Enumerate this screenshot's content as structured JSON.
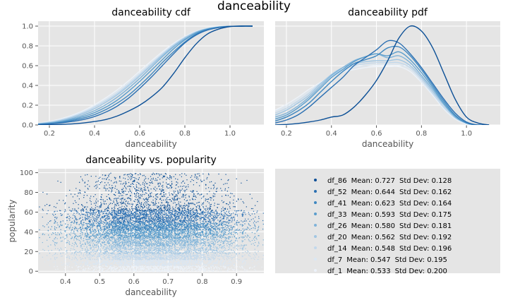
{
  "suptitle": "danceability",
  "colors": {
    "panel_bg": "#e5e5e5",
    "grid": "#ffffff",
    "series": [
      "#0b4f96",
      "#2a6fb2",
      "#3e87c0",
      "#5a9dcc",
      "#7fb3d9",
      "#a0c6e3",
      "#c1d8ec",
      "#dae7f3",
      "#ecf2f9"
    ]
  },
  "chart_data": [
    {
      "type": "line",
      "title": "danceability cdf",
      "xlabel": "danceability",
      "ylabel": "",
      "xlim": [
        0.15,
        1.15
      ],
      "ylim": [
        0,
        1.05
      ],
      "xticks": [
        "0.2",
        "0.4",
        "0.6",
        "0.8",
        "1.0"
      ],
      "yticks": [
        "0.0",
        "0.2",
        "0.4",
        "0.6",
        "0.8",
        "1.0"
      ],
      "grid": true,
      "x": [
        0.15,
        0.2,
        0.25,
        0.3,
        0.35,
        0.4,
        0.45,
        0.5,
        0.55,
        0.6,
        0.65,
        0.7,
        0.75,
        0.8,
        0.85,
        0.9,
        0.95,
        1.0,
        1.05,
        1.1
      ],
      "series": [
        {
          "name": "df_86",
          "values": [
            0.0,
            0.002,
            0.005,
            0.01,
            0.02,
            0.035,
            0.055,
            0.09,
            0.14,
            0.2,
            0.28,
            0.38,
            0.52,
            0.68,
            0.82,
            0.92,
            0.97,
            0.995,
            1.0,
            1.0
          ]
        },
        {
          "name": "df_52",
          "values": [
            0.005,
            0.01,
            0.02,
            0.035,
            0.055,
            0.085,
            0.13,
            0.19,
            0.27,
            0.37,
            0.48,
            0.6,
            0.72,
            0.83,
            0.91,
            0.96,
            0.985,
            0.998,
            1.0,
            1.0
          ]
        },
        {
          "name": "df_41",
          "values": [
            0.006,
            0.012,
            0.025,
            0.045,
            0.07,
            0.105,
            0.155,
            0.22,
            0.3,
            0.4,
            0.51,
            0.63,
            0.74,
            0.84,
            0.92,
            0.965,
            0.988,
            0.998,
            1.0,
            1.0
          ]
        },
        {
          "name": "df_33",
          "values": [
            0.008,
            0.017,
            0.032,
            0.055,
            0.085,
            0.125,
            0.18,
            0.25,
            0.34,
            0.44,
            0.55,
            0.66,
            0.77,
            0.86,
            0.93,
            0.97,
            0.99,
            0.998,
            1.0,
            1.0
          ]
        },
        {
          "name": "df_26",
          "values": [
            0.01,
            0.02,
            0.038,
            0.065,
            0.1,
            0.145,
            0.205,
            0.28,
            0.37,
            0.47,
            0.58,
            0.69,
            0.79,
            0.87,
            0.935,
            0.972,
            0.99,
            0.998,
            1.0,
            1.0
          ]
        },
        {
          "name": "df_20",
          "values": [
            0.012,
            0.025,
            0.045,
            0.075,
            0.115,
            0.165,
            0.23,
            0.305,
            0.395,
            0.495,
            0.6,
            0.705,
            0.8,
            0.88,
            0.94,
            0.975,
            0.992,
            0.998,
            1.0,
            1.0
          ]
        },
        {
          "name": "df_14",
          "values": [
            0.014,
            0.028,
            0.05,
            0.082,
            0.125,
            0.18,
            0.245,
            0.32,
            0.41,
            0.51,
            0.615,
            0.715,
            0.81,
            0.885,
            0.942,
            0.976,
            0.992,
            0.998,
            1.0,
            1.0
          ]
        },
        {
          "name": "df_7",
          "values": [
            0.016,
            0.032,
            0.056,
            0.09,
            0.135,
            0.19,
            0.258,
            0.335,
            0.425,
            0.525,
            0.625,
            0.725,
            0.815,
            0.89,
            0.945,
            0.978,
            0.993,
            0.998,
            1.0,
            1.0
          ]
        },
        {
          "name": "df_1",
          "values": [
            0.018,
            0.036,
            0.062,
            0.098,
            0.145,
            0.205,
            0.275,
            0.355,
            0.445,
            0.545,
            0.645,
            0.74,
            0.825,
            0.895,
            0.948,
            0.98,
            0.994,
            0.999,
            1.0,
            1.0
          ]
        }
      ]
    },
    {
      "type": "line",
      "title": "danceability pdf",
      "xlabel": "danceability",
      "ylabel": "",
      "xlim": [
        0.15,
        1.15
      ],
      "ylim": [
        0,
        1.05
      ],
      "xticks": [
        "0.2",
        "0.4",
        "0.6",
        "0.8",
        "1.0"
      ],
      "yticks": [],
      "grid": true,
      "x": [
        0.15,
        0.2,
        0.25,
        0.3,
        0.35,
        0.4,
        0.45,
        0.5,
        0.55,
        0.6,
        0.65,
        0.7,
        0.75,
        0.8,
        0.85,
        0.9,
        0.95,
        1.0,
        1.05,
        1.1
      ],
      "series": [
        {
          "name": "df_86",
          "values": [
            0.0,
            0.005,
            0.015,
            0.03,
            0.05,
            0.08,
            0.1,
            0.18,
            0.3,
            0.45,
            0.65,
            0.88,
            1.0,
            0.95,
            0.78,
            0.52,
            0.26,
            0.08,
            0.02,
            0.0
          ]
        },
        {
          "name": "df_52",
          "values": [
            0.02,
            0.05,
            0.1,
            0.18,
            0.28,
            0.38,
            0.48,
            0.6,
            0.68,
            0.76,
            0.85,
            0.83,
            0.72,
            0.58,
            0.42,
            0.26,
            0.12,
            0.03,
            0.0,
            0.0
          ]
        },
        {
          "name": "df_41",
          "values": [
            0.04,
            0.08,
            0.14,
            0.22,
            0.33,
            0.44,
            0.54,
            0.62,
            0.66,
            0.7,
            0.78,
            0.79,
            0.7,
            0.56,
            0.4,
            0.24,
            0.1,
            0.02,
            0.0,
            0.0
          ]
        },
        {
          "name": "df_33",
          "values": [
            0.06,
            0.1,
            0.17,
            0.26,
            0.37,
            0.48,
            0.56,
            0.64,
            0.69,
            0.72,
            0.7,
            0.74,
            0.66,
            0.53,
            0.38,
            0.22,
            0.09,
            0.02,
            0.0,
            0.0
          ]
        },
        {
          "name": "df_26",
          "values": [
            0.08,
            0.12,
            0.19,
            0.28,
            0.39,
            0.5,
            0.58,
            0.65,
            0.69,
            0.72,
            0.68,
            0.7,
            0.63,
            0.5,
            0.36,
            0.21,
            0.08,
            0.02,
            0.0,
            0.0
          ]
        },
        {
          "name": "df_20",
          "values": [
            0.1,
            0.15,
            0.22,
            0.3,
            0.41,
            0.51,
            0.58,
            0.62,
            0.64,
            0.65,
            0.65,
            0.66,
            0.6,
            0.48,
            0.34,
            0.2,
            0.08,
            0.02,
            0.0,
            0.0
          ]
        },
        {
          "name": "df_14",
          "values": [
            0.12,
            0.17,
            0.24,
            0.32,
            0.42,
            0.5,
            0.56,
            0.6,
            0.62,
            0.63,
            0.63,
            0.63,
            0.58,
            0.46,
            0.32,
            0.18,
            0.07,
            0.02,
            0.0,
            0.0
          ]
        },
        {
          "name": "df_7",
          "values": [
            0.14,
            0.19,
            0.26,
            0.34,
            0.42,
            0.49,
            0.54,
            0.58,
            0.6,
            0.61,
            0.61,
            0.61,
            0.56,
            0.44,
            0.31,
            0.17,
            0.07,
            0.01,
            0.0,
            0.0
          ]
        },
        {
          "name": "df_1",
          "values": [
            0.15,
            0.21,
            0.28,
            0.36,
            0.43,
            0.49,
            0.54,
            0.56,
            0.58,
            0.59,
            0.59,
            0.59,
            0.54,
            0.43,
            0.3,
            0.16,
            0.06,
            0.01,
            0.0,
            0.0
          ]
        }
      ]
    },
    {
      "type": "scatter",
      "title": "danceability vs. popularity",
      "xlabel": "danceability",
      "ylabel": "popularity",
      "xlim": [
        0.32,
        0.98
      ],
      "ylim": [
        -2,
        104
      ],
      "xticks": [
        "0.4",
        "0.5",
        "0.6",
        "0.7",
        "0.8",
        "0.9"
      ],
      "yticks": [
        "0",
        "20",
        "40",
        "60",
        "80",
        "100"
      ],
      "grid": true,
      "point_layers": [
        {
          "name": "df_1",
          "y_range": [
            0,
            6
          ],
          "density": 900
        },
        {
          "name": "df_7",
          "y_range": [
            6,
            12
          ],
          "density": 900
        },
        {
          "name": "df_14",
          "y_range": [
            12,
            18
          ],
          "density": 900
        },
        {
          "name": "df_20",
          "y_range": [
            18,
            26
          ],
          "density": 1000
        },
        {
          "name": "df_26",
          "y_range": [
            26,
            34
          ],
          "density": 1100
        },
        {
          "name": "df_33",
          "y_range": [
            34,
            42
          ],
          "density": 1300
        },
        {
          "name": "df_41",
          "y_range": [
            42,
            50
          ],
          "density": 1400
        },
        {
          "name": "df_52",
          "y_range": [
            50,
            62
          ],
          "density": 1600
        },
        {
          "name": "df_86",
          "y_range": [
            62,
            100
          ],
          "density": 1200
        }
      ]
    }
  ],
  "legend": {
    "placement": "center",
    "entries": [
      {
        "label": "df_86",
        "mean": "Mean: 0.727",
        "std": "Std Dev: 0.128"
      },
      {
        "label": "df_52",
        "mean": "Mean: 0.644",
        "std": "Std Dev: 0.162"
      },
      {
        "label": "df_41",
        "mean": "Mean: 0.623",
        "std": "Std Dev: 0.164"
      },
      {
        "label": "df_33",
        "mean": "Mean: 0.593",
        "std": "Std Dev: 0.175"
      },
      {
        "label": "df_26",
        "mean": "Mean: 0.580",
        "std": "Std Dev: 0.181"
      },
      {
        "label": "df_20",
        "mean": "Mean: 0.562",
        "std": "Std Dev: 0.192"
      },
      {
        "label": "df_14",
        "mean": "Mean: 0.548",
        "std": "Std Dev: 0.196"
      },
      {
        "label": "df_7",
        "mean": "Mean: 0.547",
        "std": "Std Dev: 0.195"
      },
      {
        "label": "df_1",
        "mean": "Mean: 0.533",
        "std": "Std Dev: 0.200"
      }
    ]
  }
}
